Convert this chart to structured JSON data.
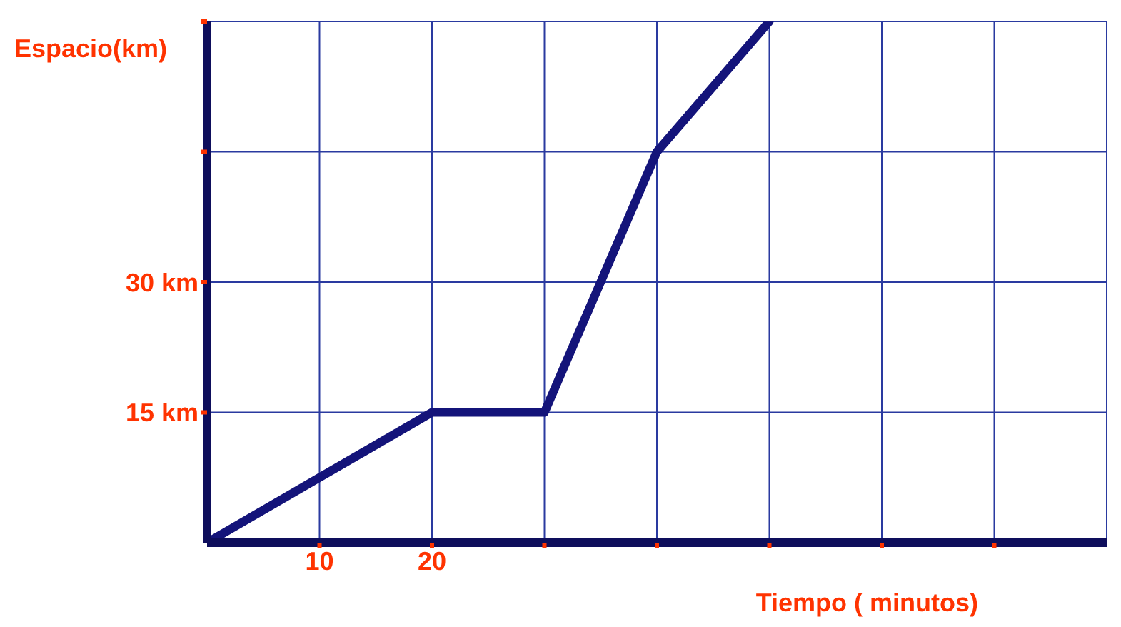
{
  "chart_data": {
    "type": "line",
    "xlabel": "Tiempo ( minutos)",
    "ylabel": "Espacio(km)",
    "x": [
      0,
      20,
      30,
      40,
      50
    ],
    "series": [
      {
        "color": "#14147a",
        "values": [
          0,
          15,
          15,
          45,
          60
        ]
      }
    ],
    "xlim": [
      0,
      80
    ],
    "xticks": [
      10,
      20,
      {
        "value": 30,
        "label": null
      },
      {
        "value": 40,
        "label": null
      },
      {
        "value": 50,
        "label": null
      },
      {
        "value": 60,
        "label": null
      },
      {
        "value": 70,
        "label": null
      }
    ],
    "ylim": [
      0,
      60
    ],
    "yticks": [
      {
        "value": 15,
        "label": "15 km"
      },
      {
        "value": 30,
        "label": "30 km"
      },
      {
        "value": 45,
        "label": null
      },
      {
        "value": 60,
        "label": null
      }
    ],
    "grid": true,
    "marker": "none",
    "line_style": "solid"
  }
}
